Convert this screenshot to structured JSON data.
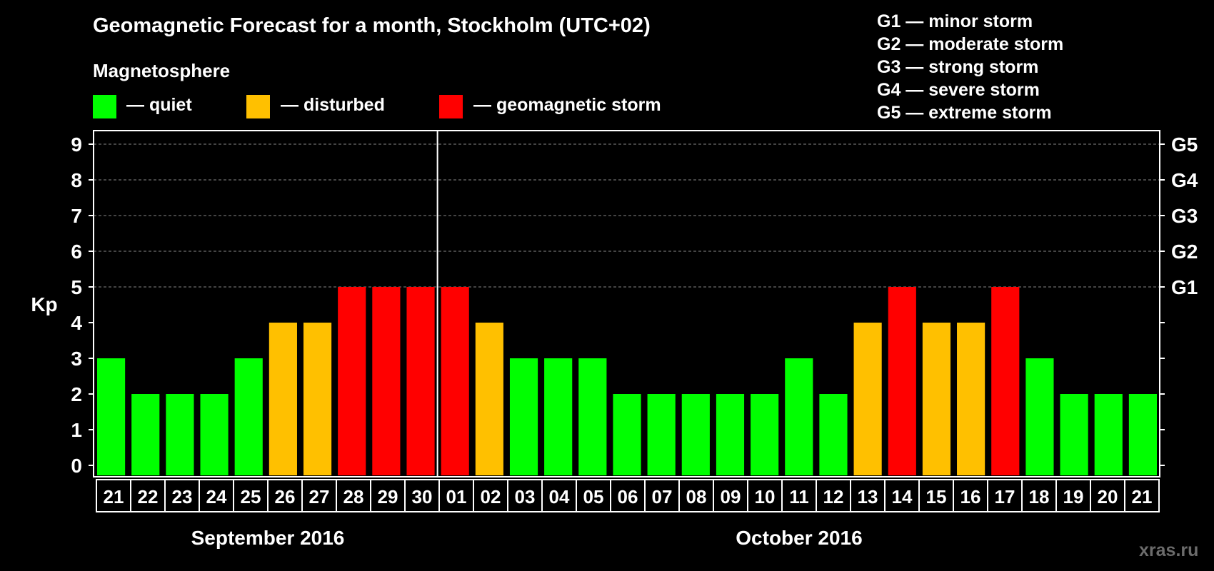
{
  "title": "Geomagnetic Forecast for a month, Stockholm (UTC+02)",
  "subtitle": "Magnetosphere",
  "legend": [
    {
      "label": "— quiet",
      "color": "#00ff00"
    },
    {
      "label": "— disturbed",
      "color": "#ffc000"
    },
    {
      "label": "— geomagnetic storm",
      "color": "#ff0000"
    }
  ],
  "storm_scale": [
    "G1 — minor storm",
    "G2 — moderate storm",
    "G3 — strong storm",
    "G4 — severe storm",
    "G5 — extreme storm"
  ],
  "watermark": "xras.ru",
  "colors": {
    "quiet": "#00ff00",
    "disturbed": "#ffc000",
    "storm": "#ff0000",
    "background": "#000000",
    "axis": "#ffffff",
    "grid": "#888888"
  },
  "chart_data": {
    "type": "bar",
    "title": "Geomagnetic Forecast for a month, Stockholm (UTC+02)",
    "ylabel": "Kp",
    "ylim": [
      0,
      9
    ],
    "yticks": [
      "0",
      "1",
      "2",
      "3",
      "4",
      "5",
      "6",
      "7",
      "8",
      "9"
    ],
    "right_ticks": [
      {
        "kp": 5,
        "label": "G1"
      },
      {
        "kp": 6,
        "label": "G2"
      },
      {
        "kp": 7,
        "label": "G3"
      },
      {
        "kp": 8,
        "label": "G4"
      },
      {
        "kp": 9,
        "label": "G5"
      }
    ],
    "categories": [
      "21",
      "22",
      "23",
      "24",
      "25",
      "26",
      "27",
      "28",
      "29",
      "30",
      "01",
      "02",
      "03",
      "04",
      "05",
      "06",
      "07",
      "08",
      "09",
      "10",
      "11",
      "12",
      "13",
      "14",
      "15",
      "16",
      "17",
      "18",
      "19",
      "20",
      "21"
    ],
    "values": [
      3,
      2,
      2,
      2,
      3,
      4,
      4,
      5,
      5,
      5,
      5,
      4,
      3,
      3,
      3,
      2,
      2,
      2,
      2,
      2,
      3,
      2,
      4,
      5,
      4,
      4,
      5,
      3,
      2,
      2,
      2
    ],
    "levels": [
      "quiet",
      "quiet",
      "quiet",
      "quiet",
      "quiet",
      "disturbed",
      "disturbed",
      "storm",
      "storm",
      "storm",
      "storm",
      "disturbed",
      "quiet",
      "quiet",
      "quiet",
      "quiet",
      "quiet",
      "quiet",
      "quiet",
      "quiet",
      "quiet",
      "quiet",
      "disturbed",
      "storm",
      "disturbed",
      "disturbed",
      "storm",
      "quiet",
      "quiet",
      "quiet",
      "quiet"
    ],
    "months": [
      {
        "label": "September 2016",
        "days": 10
      },
      {
        "label": "October 2016",
        "days": 21
      }
    ],
    "grid": "dashed at Kp 5–9",
    "legend_position": "top"
  }
}
